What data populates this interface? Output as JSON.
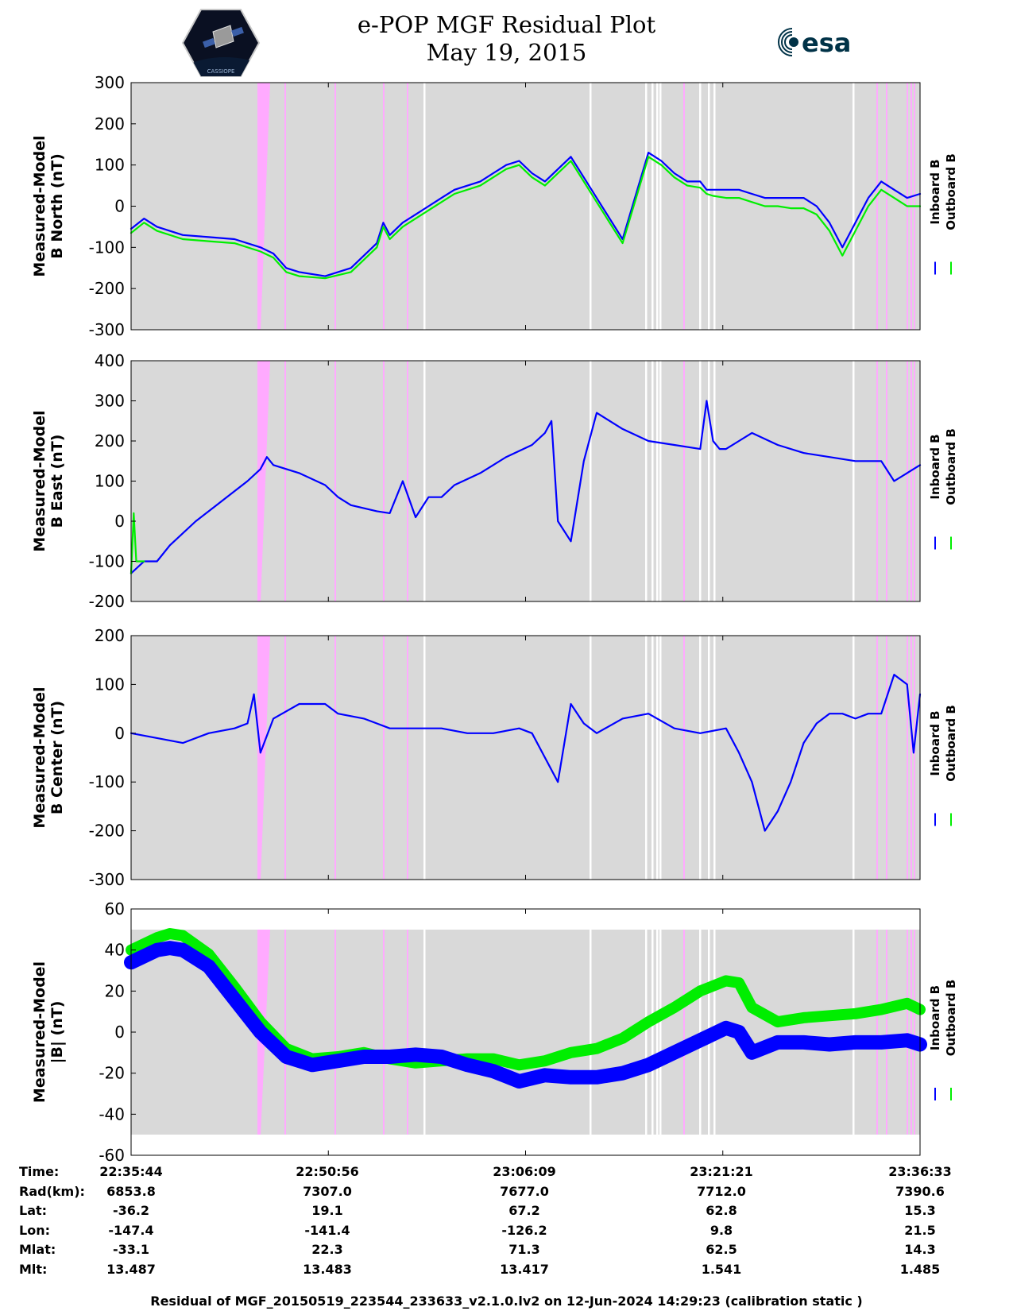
{
  "header": {
    "title_line1": "e-POP MGF Residual Plot",
    "title_line2": "May 19, 2015",
    "logo_left_text": "CASSIOPE",
    "logo_right_text": "esa"
  },
  "colors": {
    "inboard": "#0000ff",
    "outboard": "#00ee00",
    "background": "#d9d9d9",
    "gap": "#ffffff",
    "flag": "#ffaaff"
  },
  "legend": {
    "inboard": "Inboard B",
    "outboard": "Outboard B"
  },
  "chart_data": [
    {
      "type": "line",
      "ylabel": "Measured-Model B North (nT)",
      "ylabel_lines": [
        "Measured-Model",
        "B North (nT)"
      ],
      "ylim": [
        -300,
        300
      ],
      "yticks": [
        300,
        200,
        100,
        0,
        -100,
        -200,
        -300
      ],
      "ytick_labels": [
        "300",
        "200",
        "100",
        "0",
        "-100",
        "-200",
        "-300"
      ],
      "x_minutes_range": [
        0,
        61
      ],
      "series": [
        {
          "name": "Inboard B",
          "color": "#0000ff",
          "x": [
            0,
            1,
            2,
            4,
            6,
            8,
            10,
            11,
            12,
            13,
            15,
            17,
            18,
            19,
            19.5,
            20,
            21,
            22,
            23,
            24,
            25,
            27,
            28,
            29,
            30,
            31,
            32,
            34,
            36,
            38,
            40,
            41,
            42,
            43,
            44,
            44.5,
            45,
            46,
            47,
            48,
            49,
            50,
            51,
            52,
            53,
            54,
            55,
            56,
            57,
            58,
            59,
            60,
            61
          ],
          "y": [
            -55,
            -30,
            -50,
            -70,
            -75,
            -80,
            -100,
            -115,
            -150,
            -160,
            -170,
            -150,
            -120,
            -90,
            -40,
            -70,
            -40,
            -20,
            0,
            20,
            40,
            60,
            80,
            100,
            110,
            80,
            60,
            120,
            20,
            -80,
            130,
            110,
            80,
            60,
            60,
            40,
            40,
            40,
            40,
            30,
            20,
            20,
            20,
            20,
            0,
            -40,
            -100,
            -40,
            20,
            60,
            40,
            20,
            30
          ]
        },
        {
          "name": "Outboard B",
          "color": "#00ee00",
          "x": [
            0,
            1,
            2,
            4,
            6,
            8,
            10,
            11,
            12,
            13,
            15,
            17,
            18,
            19,
            19.5,
            20,
            21,
            22,
            23,
            24,
            25,
            27,
            28,
            29,
            30,
            31,
            32,
            34,
            36,
            38,
            40,
            41,
            42,
            43,
            44,
            44.5,
            45,
            46,
            47,
            48,
            49,
            50,
            51,
            52,
            53,
            54,
            55,
            56,
            57,
            58,
            59,
            60,
            61
          ],
          "y": [
            -65,
            -40,
            -60,
            -80,
            -85,
            -90,
            -110,
            -125,
            -160,
            -170,
            -175,
            -160,
            -130,
            -100,
            -50,
            -80,
            -50,
            -30,
            -10,
            10,
            30,
            50,
            70,
            90,
            100,
            70,
            50,
            110,
            10,
            -90,
            120,
            100,
            70,
            50,
            45,
            30,
            25,
            20,
            20,
            10,
            0,
            0,
            -5,
            -5,
            -20,
            -60,
            -120,
            -60,
            0,
            40,
            20,
            0,
            0
          ]
        }
      ]
    },
    {
      "type": "line",
      "ylabel": "Measured-Model B East (nT)",
      "ylabel_lines": [
        "Measured-Model",
        "B East (nT)"
      ],
      "ylim": [
        -200,
        400
      ],
      "yticks": [
        400,
        300,
        200,
        100,
        0,
        -100,
        -200
      ],
      "ytick_labels": [
        "400",
        "300",
        "200",
        "100",
        "0",
        "-100",
        "-200"
      ],
      "x_minutes_range": [
        0,
        61
      ],
      "series": [
        {
          "name": "Inboard B",
          "color": "#0000ff",
          "x": [
            0,
            1,
            2,
            3,
            5,
            7,
            9,
            10,
            10.5,
            11,
            13,
            15,
            16,
            17,
            19,
            20,
            21,
            22,
            23,
            24,
            25,
            27,
            29,
            31,
            32,
            32.5,
            33,
            34,
            35,
            36,
            38,
            40,
            42,
            44,
            44.5,
            45,
            45.5,
            46,
            47,
            48,
            50,
            52,
            54,
            56,
            58,
            59,
            60,
            61
          ],
          "y": [
            -130,
            -100,
            -100,
            -60,
            0,
            50,
            100,
            130,
            160,
            140,
            120,
            90,
            60,
            40,
            25,
            20,
            100,
            10,
            60,
            60,
            90,
            120,
            160,
            190,
            220,
            250,
            0,
            -50,
            150,
            270,
            230,
            200,
            190,
            180,
            300,
            200,
            180,
            180,
            200,
            220,
            190,
            170,
            160,
            150,
            150,
            100,
            120,
            140
          ]
        },
        {
          "name": "Outboard B",
          "color": "#00ee00",
          "x": [
            0,
            0.2,
            0.4,
            1
          ],
          "y": [
            -130,
            20,
            -100,
            -100
          ]
        }
      ]
    },
    {
      "type": "line",
      "ylabel": "Measured-Model B Center (nT)",
      "ylabel_lines": [
        "Measured-Model",
        "B Center (nT)"
      ],
      "ylim": [
        -300,
        200
      ],
      "yticks": [
        200,
        100,
        0,
        -100,
        -200,
        -300
      ],
      "ytick_labels": [
        "200",
        "100",
        "0",
        "-100",
        "-200",
        "-300"
      ],
      "x_minutes_range": [
        0,
        61
      ],
      "series": [
        {
          "name": "Inboard B",
          "color": "#0000ff",
          "x": [
            0,
            2,
            4,
            6,
            8,
            9,
            9.5,
            10,
            11,
            13,
            15,
            16,
            18,
            19,
            20,
            22,
            24,
            26,
            28,
            30,
            31,
            32,
            33,
            34,
            35,
            36,
            38,
            40,
            42,
            44,
            46,
            47,
            48,
            49,
            50,
            51,
            52,
            53,
            54,
            55,
            56,
            57,
            58,
            59,
            60,
            60.5,
            61
          ],
          "y": [
            0,
            -10,
            -20,
            0,
            10,
            20,
            80,
            -40,
            30,
            60,
            60,
            40,
            30,
            20,
            10,
            10,
            10,
            0,
            0,
            10,
            0,
            -50,
            -100,
            60,
            20,
            0,
            30,
            40,
            10,
            0,
            10,
            -40,
            -100,
            -200,
            -160,
            -100,
            -20,
            20,
            40,
            40,
            30,
            40,
            40,
            120,
            100,
            -40,
            80
          ]
        }
      ]
    },
    {
      "type": "line",
      "ylabel": "Measured-Model |B| (nT)",
      "ylabel_lines": [
        "Measured-Model",
        "|B| (nT)"
      ],
      "ylim": [
        -60,
        60
      ],
      "yticks": [
        60,
        40,
        20,
        0,
        -20,
        -40,
        -60
      ],
      "ytick_labels": [
        "60",
        "40",
        "20",
        "0",
        "-20",
        "-40",
        "-60"
      ],
      "x_minutes_range": [
        0,
        61
      ],
      "series": [
        {
          "name": "Outboard B",
          "color": "#00ee00",
          "x": [
            0,
            2,
            3,
            4,
            6,
            8,
            10,
            12,
            14,
            16,
            18,
            20,
            22,
            24,
            26,
            28,
            30,
            32,
            34,
            36,
            38,
            40,
            42,
            44,
            46,
            47,
            48,
            50,
            52,
            54,
            56,
            58,
            60,
            61
          ],
          "y": [
            40,
            46,
            48,
            47,
            38,
            22,
            5,
            -8,
            -13,
            -12,
            -10,
            -13,
            -15,
            -14,
            -13,
            -13,
            -16,
            -14,
            -10,
            -8,
            -3,
            5,
            12,
            20,
            25,
            24,
            12,
            5,
            7,
            8,
            9,
            11,
            14,
            11
          ]
        },
        {
          "name": "Inboard B",
          "color": "#0000ff",
          "x": [
            0,
            2,
            3,
            4,
            6,
            8,
            10,
            12,
            14,
            16,
            18,
            20,
            22,
            24,
            26,
            28,
            30,
            32,
            34,
            36,
            38,
            40,
            42,
            44,
            46,
            47,
            48,
            50,
            52,
            54,
            56,
            58,
            60,
            61
          ],
          "y": [
            34,
            40,
            41,
            40,
            32,
            16,
            0,
            -12,
            -16,
            -14,
            -12,
            -12,
            -11,
            -12,
            -16,
            -19,
            -24,
            -21,
            -22,
            -22,
            -20,
            -16,
            -10,
            -4,
            2,
            0,
            -10,
            -5,
            -5,
            -6,
            -5,
            -5,
            -4,
            -6
          ]
        }
      ]
    }
  ],
  "x_axis": {
    "time_labels": [
      "22:35:44",
      "22:50:56",
      "23:06:09",
      "23:21:21",
      "23:36:33"
    ]
  },
  "orbit_table": {
    "rows": [
      {
        "label": "Time:",
        "values": [
          "22:35:44",
          "22:50:56",
          "23:06:09",
          "23:21:21",
          "23:36:33"
        ]
      },
      {
        "label": "Rad(km):",
        "values": [
          "6853.8",
          "7307.0",
          "7677.0",
          "7712.0",
          "7390.6"
        ]
      },
      {
        "label": "Lat:",
        "values": [
          "-36.2",
          "19.1",
          "67.2",
          "62.8",
          "15.3"
        ]
      },
      {
        "label": "Lon:",
        "values": [
          "-147.4",
          "-141.4",
          "-126.2",
          "9.8",
          "21.5"
        ]
      },
      {
        "label": "Mlat:",
        "values": [
          "-33.1",
          "22.3",
          "71.3",
          "62.5",
          "14.3"
        ]
      },
      {
        "label": "Mlt:",
        "values": [
          "13.487",
          "13.483",
          "13.417",
          "1.541",
          "1.485"
        ]
      }
    ]
  },
  "footer": {
    "text": "Residual of MGF_20150519_223544_233633_v2.1.0.lv2 on 12-Jun-2024 14:29:23 (calibration static )"
  }
}
